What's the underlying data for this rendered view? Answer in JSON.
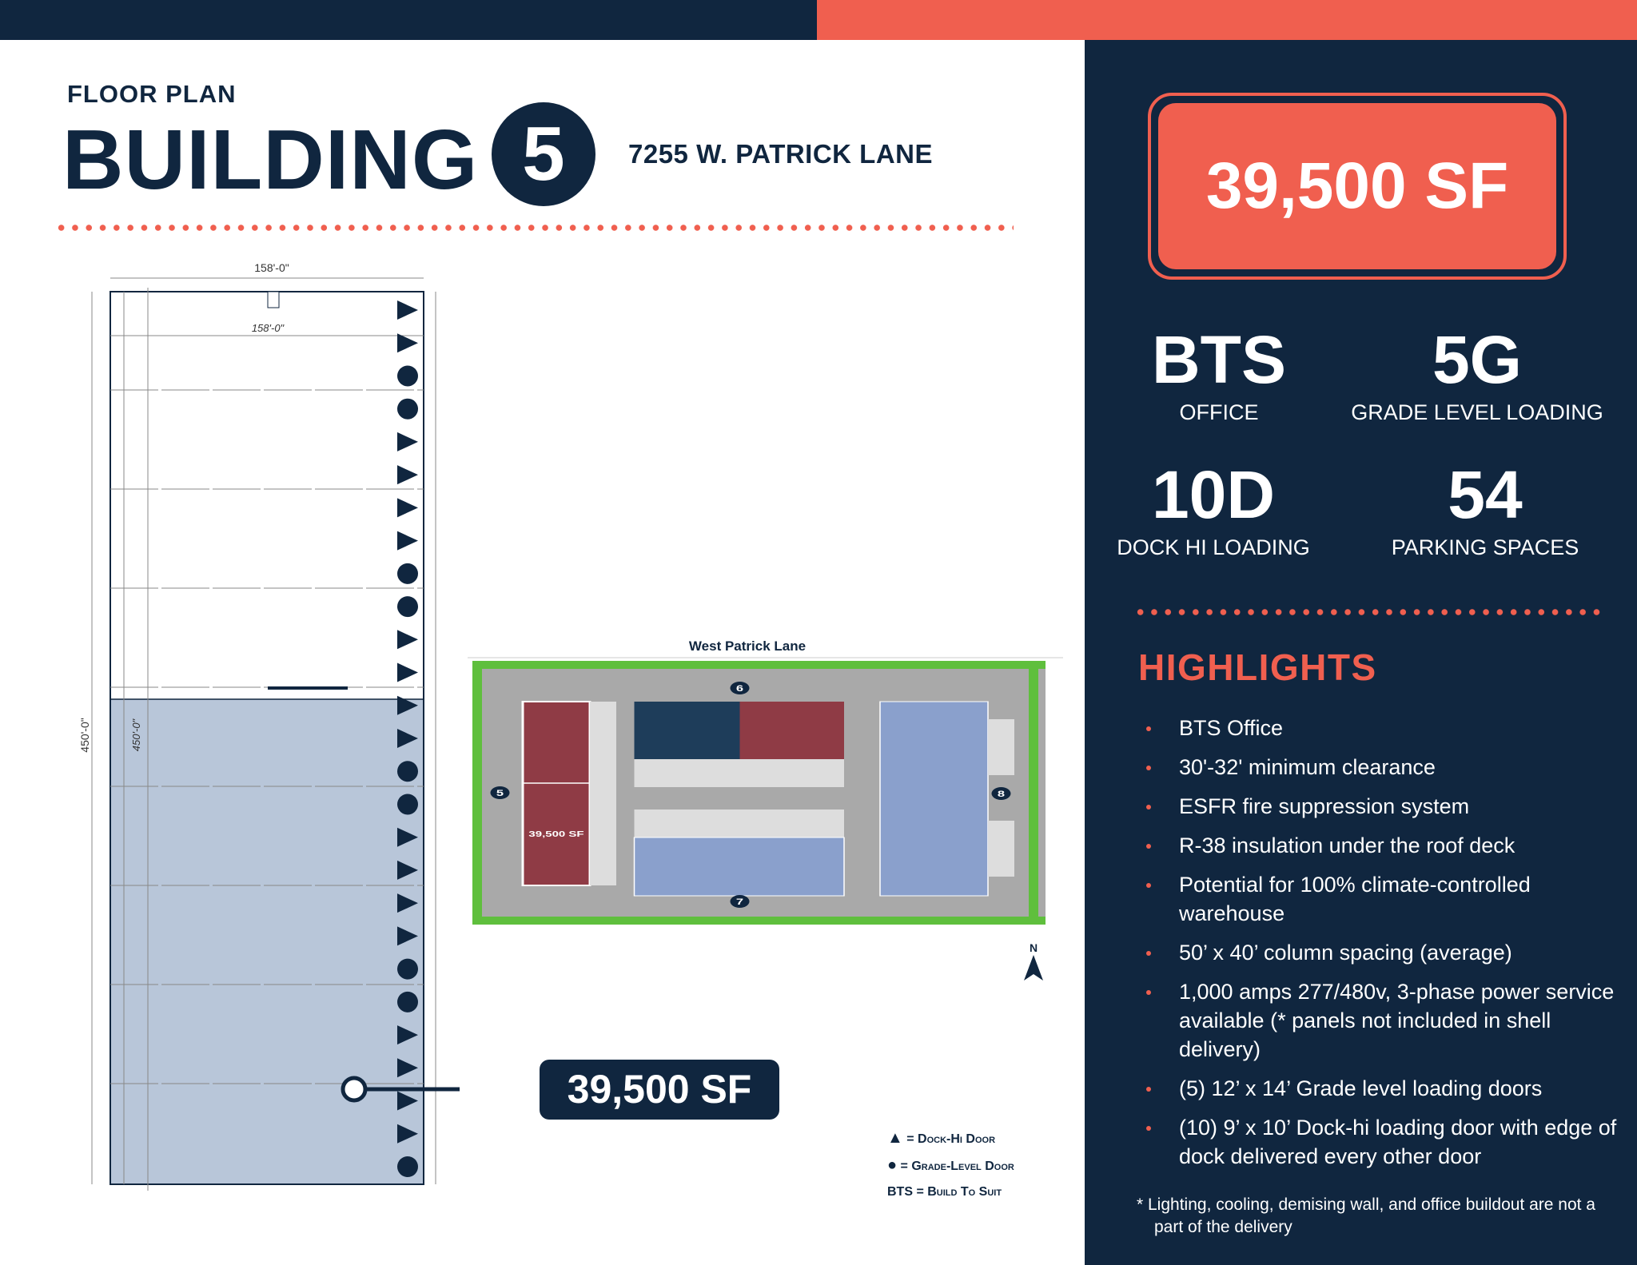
{
  "header": {
    "eyebrow": "FLOOR PLAN",
    "title": "BUILDING",
    "building_number": "5",
    "address": "7255 W. PATRICK LANE"
  },
  "colors": {
    "navy": "#10263f",
    "coral": "#f05f4f",
    "shaded_area": "#b8c6d9"
  },
  "floor_plan": {
    "width_dim": "158'-0\"",
    "width_dim_inner": "158'-0\"",
    "length_dim": "450'-0\"",
    "length_dim_inner": "450'-0\"",
    "area_callout": "39,500 SF",
    "door_markers": [
      "dock-hi",
      "dock-hi",
      "grade",
      "grade",
      "dock-hi",
      "dock-hi",
      "dock-hi",
      "dock-hi",
      "grade",
      "grade",
      "dock-hi",
      "dock-hi",
      "dock-hi",
      "dock-hi",
      "grade",
      "grade",
      "dock-hi",
      "dock-hi",
      "dock-hi",
      "dock-hi",
      "grade",
      "grade",
      "dock-hi",
      "dock-hi",
      "dock-hi",
      "dock-hi",
      "grade"
    ]
  },
  "site_plan": {
    "street": "West Patrick Lane",
    "building_labels": [
      "5",
      "6",
      "7",
      "8"
    ],
    "highlight_area": "39,500 SF",
    "north": "N"
  },
  "legend": {
    "dock": "= Dock-Hi Door",
    "grade": "= Grade-Level Door",
    "bts": "BTS = Build To Suit"
  },
  "summary": {
    "area": "39,500 SF",
    "stats": [
      {
        "value": "BTS",
        "label": "OFFICE"
      },
      {
        "value": "5G",
        "label": "GRADE LEVEL LOADING"
      },
      {
        "value": "10D",
        "label": "DOCK HI LOADING"
      },
      {
        "value": "54",
        "label": "PARKING SPACES"
      }
    ]
  },
  "highlights": {
    "title": "HIGHLIGHTS",
    "items": [
      "BTS Office",
      "30'-32' minimum clearance",
      "ESFR fire suppression system",
      "R-38 insulation under the roof deck",
      "Potential for 100% climate-controlled warehouse",
      "50’ x 40’ column spacing (average)",
      "1,000 amps 277/480v, 3-phase power service available (* panels not included in shell delivery)",
      "(5) 12’ x 14’ Grade level loading doors",
      "(10) 9’ x 10’ Dock-hi loading door with edge of dock delivered every other door"
    ],
    "footnote": "* Lighting, cooling, demising wall, and office buildout are not a part of the delivery"
  }
}
